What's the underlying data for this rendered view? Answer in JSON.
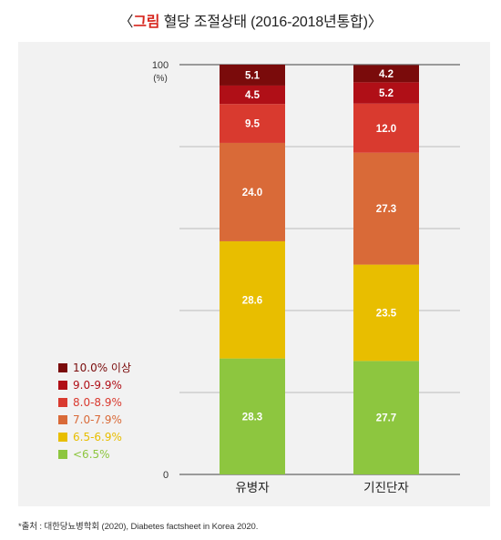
{
  "title": {
    "prefix": "그림",
    "text": "혈당 조절상태 (2016-2018년통합)"
  },
  "chart_data": {
    "type": "bar",
    "stacked": true,
    "categories": [
      "유병자",
      "기진단자"
    ],
    "y_top_label": "100",
    "y_unit_label": "(%)",
    "y_bottom_label": "0",
    "ylim": [
      0,
      100
    ],
    "grid": true,
    "legend_placement": "left",
    "series": [
      {
        "name": "<6.5%",
        "color": "#8dc63f",
        "values": [
          28.3,
          27.7
        ],
        "labels": [
          "28.3",
          "27.7"
        ]
      },
      {
        "name": "6.5-6.9%",
        "color": "#e8be00",
        "values": [
          28.6,
          23.5
        ],
        "labels": [
          "28.6",
          "23.5"
        ]
      },
      {
        "name": "7.0-7.9%",
        "color": "#d96a38",
        "values": [
          24.0,
          27.3
        ],
        "labels": [
          "24.0",
          "27.3"
        ]
      },
      {
        "name": "8.0-8.9%",
        "color": "#d93a2f",
        "values": [
          9.5,
          12.0
        ],
        "labels": [
          "9.5",
          "12.0"
        ]
      },
      {
        "name": "9.0-9.9%",
        "color": "#b00f17",
        "values": [
          4.5,
          5.2
        ],
        "labels": [
          "4.5",
          "5.2"
        ]
      },
      {
        "name": "10.0% 이상",
        "color": "#7a0b0b",
        "values": [
          5.1,
          4.2
        ],
        "labels": [
          "5.1",
          "4.2"
        ]
      }
    ]
  },
  "source": "*출처 : 대한당뇨병학회 (2020), Diabetes factsheet in Korea 2020."
}
